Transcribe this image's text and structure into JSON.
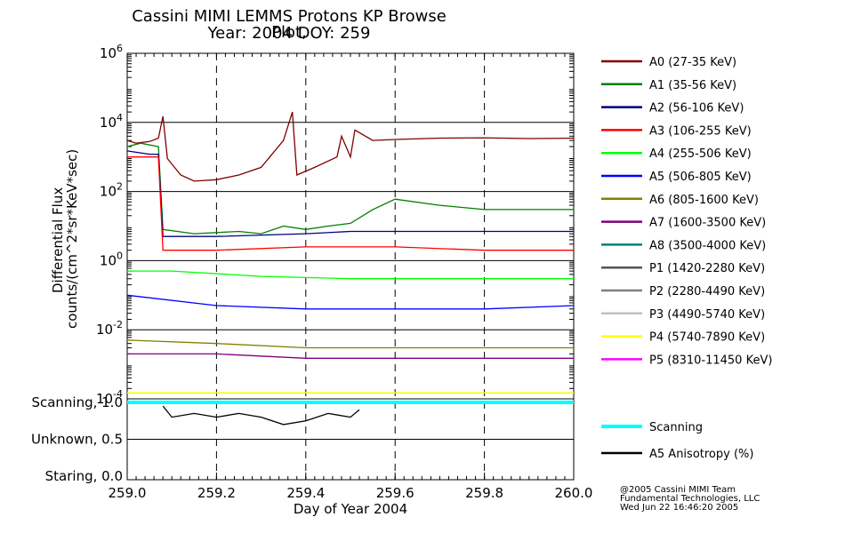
{
  "header": {
    "title_line1": "Cassini MIMI LEMMS Protons KP Browse Plot,",
    "title_line2": "Year: 2004 DOY: 259"
  },
  "credits": {
    "line1": "@2005 Cassini MIMI Team",
    "line2": "Fundamental Technologies, LLC",
    "line3": "Wed Jun 22 16:46:20 2005"
  },
  "chart_data": [
    {
      "type": "line",
      "title": "Cassini MIMI LEMMS Protons KP Browse Plot, Year: 2004 DOY: 259",
      "ylabel": "Differential Flux",
      "ylabel_units": "counts/(cm^2*sr*KeV*sec)",
      "yscale": "log",
      "ylim": [
        0.0001,
        1000000
      ],
      "yticks": [
        {
          "value": 0.0001,
          "base": "10",
          "exp": "-4"
        },
        {
          "value": 0.01,
          "base": "10",
          "exp": "-2"
        },
        {
          "value": 1,
          "base": "10",
          "exp": "0"
        },
        {
          "value": 100,
          "base": "10",
          "exp": "2"
        },
        {
          "value": 10000,
          "base": "10",
          "exp": "4"
        },
        {
          "value": 1000000,
          "base": "10",
          "exp": "6"
        }
      ],
      "xlim": [
        259.0,
        260.0
      ],
      "legend_position": "right",
      "series": [
        {
          "name": "A0 (27-35 KeV)",
          "color": "#7f0000",
          "points": [
            [
              259.0,
              3000
            ],
            [
              259.02,
              2500
            ],
            [
              259.05,
              2800
            ],
            [
              259.07,
              3500
            ],
            [
              259.08,
              15000
            ],
            [
              259.09,
              900
            ],
            [
              259.12,
              300
            ],
            [
              259.15,
              200
            ],
            [
              259.2,
              220
            ],
            [
              259.25,
              300
            ],
            [
              259.3,
              500
            ],
            [
              259.35,
              3000
            ],
            [
              259.37,
              20000
            ],
            [
              259.38,
              300
            ],
            [
              259.42,
              500
            ],
            [
              259.47,
              1000
            ],
            [
              259.48,
              4000
            ],
            [
              259.5,
              1000
            ],
            [
              259.51,
              6000
            ],
            [
              259.55,
              3000
            ],
            [
              259.6,
              3200
            ],
            [
              259.7,
              3500
            ],
            [
              259.8,
              3600
            ],
            [
              259.9,
              3400
            ],
            [
              260.0,
              3500
            ]
          ]
        },
        {
          "name": "A1 (35-56 KeV)",
          "color": "#007f00",
          "points": [
            [
              259.0,
              2000
            ],
            [
              259.03,
              2500
            ],
            [
              259.07,
              2000
            ],
            [
              259.08,
              8
            ],
            [
              259.15,
              6
            ],
            [
              259.25,
              7
            ],
            [
              259.3,
              6
            ],
            [
              259.35,
              10
            ],
            [
              259.4,
              8
            ],
            [
              259.45,
              10
            ],
            [
              259.5,
              12
            ],
            [
              259.55,
              30
            ],
            [
              259.6,
              60
            ],
            [
              259.7,
              40
            ],
            [
              259.8,
              30
            ],
            [
              259.9,
              30
            ],
            [
              260.0,
              30
            ]
          ]
        },
        {
          "name": "A2 (56-106 KeV)",
          "color": "#00007f",
          "points": [
            [
              259.0,
              1500
            ],
            [
              259.05,
              1200
            ],
            [
              259.07,
              1200
            ],
            [
              259.08,
              5
            ],
            [
              259.2,
              5
            ],
            [
              259.4,
              6
            ],
            [
              259.5,
              7
            ],
            [
              259.6,
              7
            ],
            [
              259.8,
              7
            ],
            [
              260.0,
              7
            ]
          ]
        },
        {
          "name": "A3 (106-255 KeV)",
          "color": "#ff0000",
          "points": [
            [
              259.0,
              1000
            ],
            [
              259.07,
              1000
            ],
            [
              259.08,
              2
            ],
            [
              259.2,
              2
            ],
            [
              259.4,
              2.5
            ],
            [
              259.6,
              2.5
            ],
            [
              259.8,
              2
            ],
            [
              260.0,
              2
            ]
          ]
        },
        {
          "name": "A4 (255-506 KeV)",
          "color": "#00ff00",
          "points": [
            [
              259.0,
              0.5
            ],
            [
              259.1,
              0.5
            ],
            [
              259.3,
              0.35
            ],
            [
              259.5,
              0.3
            ],
            [
              259.7,
              0.3
            ],
            [
              259.9,
              0.3
            ],
            [
              260.0,
              0.3
            ]
          ]
        },
        {
          "name": "A5 (506-805 KeV)",
          "color": "#0000ff",
          "points": [
            [
              259.0,
              0.1
            ],
            [
              259.2,
              0.05
            ],
            [
              259.4,
              0.04
            ],
            [
              259.6,
              0.04
            ],
            [
              259.8,
              0.04
            ],
            [
              260.0,
              0.05
            ]
          ]
        },
        {
          "name": "A6 (805-1600 KeV)",
          "color": "#7f7f00",
          "points": [
            [
              259.0,
              0.005
            ],
            [
              259.2,
              0.004
            ],
            [
              259.4,
              0.003
            ],
            [
              259.6,
              0.003
            ],
            [
              259.8,
              0.003
            ],
            [
              260.0,
              0.003
            ]
          ]
        },
        {
          "name": "A7 (1600-3500 KeV)",
          "color": "#7f007f",
          "points": [
            [
              259.0,
              0.002
            ],
            [
              259.2,
              0.002
            ],
            [
              259.4,
              0.0015
            ],
            [
              259.6,
              0.0015
            ],
            [
              259.8,
              0.0015
            ],
            [
              260.0,
              0.0015
            ]
          ]
        },
        {
          "name": "A8 (3500-4000 KeV)",
          "color": "#007f7f",
          "points": [
            [
              259.0,
              0.00015
            ],
            [
              260.0,
              0.00015
            ]
          ]
        },
        {
          "name": "P1 (1420-2280 KeV)",
          "color": "#555555",
          "points": [
            [
              259.0,
              0.00015
            ],
            [
              260.0,
              0.00015
            ]
          ]
        },
        {
          "name": "P2 (2280-4490 KeV)",
          "color": "#7f7f7f",
          "points": [
            [
              259.0,
              0.00015
            ],
            [
              260.0,
              0.00015
            ]
          ]
        },
        {
          "name": "P3 (4490-5740 KeV)",
          "color": "#bfbfbf",
          "points": [
            [
              259.0,
              0.00015
            ],
            [
              260.0,
              0.00015
            ]
          ]
        },
        {
          "name": "P4 (5740-7890 KeV)",
          "color": "#ffff00",
          "points": [
            [
              259.0,
              0.00015
            ],
            [
              260.0,
              0.00015
            ]
          ]
        },
        {
          "name": "P5 (8310-11450 KeV)",
          "color": "#ff00ff",
          "points": []
        }
      ]
    },
    {
      "type": "line",
      "xlabel": "Day of Year 2004",
      "xlim": [
        259.0,
        260.0
      ],
      "xticks": [
        "259.0",
        "259.2",
        "259.4",
        "259.6",
        "259.8",
        "260.0"
      ],
      "ylim": [
        0.0,
        1.0
      ],
      "yticks": [
        {
          "value": 1.0,
          "label": "Scanning, 1.0"
        },
        {
          "value": 0.5,
          "label": "Unknown, 0.5"
        },
        {
          "value": 0.0,
          "label": "Staring, 0.0"
        }
      ],
      "series": [
        {
          "name": "Scanning",
          "color": "#00ffff",
          "points": [
            [
              259.0,
              1.0
            ],
            [
              260.0,
              1.0
            ]
          ]
        },
        {
          "name": "A5 Anisotropy (%)",
          "color": "#000000",
          "points": [
            [
              259.08,
              0.95
            ],
            [
              259.1,
              0.8
            ],
            [
              259.15,
              0.85
            ],
            [
              259.2,
              0.8
            ],
            [
              259.25,
              0.85
            ],
            [
              259.3,
              0.8
            ],
            [
              259.35,
              0.7
            ],
            [
              259.4,
              0.75
            ],
            [
              259.45,
              0.85
            ],
            [
              259.5,
              0.8
            ],
            [
              259.52,
              0.9
            ]
          ]
        }
      ]
    }
  ]
}
